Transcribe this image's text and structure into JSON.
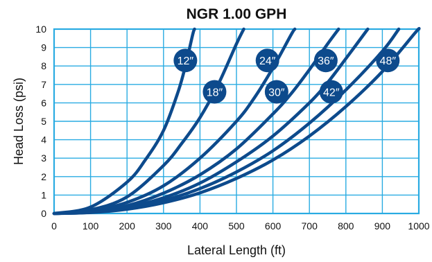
{
  "chart_data": {
    "type": "line",
    "title": "NGR 1.00 GPH",
    "xlabel": "Lateral Length (ft)",
    "ylabel": "Head Loss (psi)",
    "xlim": [
      0,
      1000
    ],
    "ylim": [
      0,
      10
    ],
    "xticks": [
      "0",
      "100",
      "200",
      "300",
      "400",
      "500",
      "600",
      "700",
      "800",
      "900",
      "1000"
    ],
    "yticks": [
      "0",
      "1",
      "2",
      "3",
      "4",
      "5",
      "6",
      "7",
      "8",
      "9",
      "10"
    ],
    "grid": true,
    "colors": {
      "grid": "#29abe2",
      "series": "#0d4a8c",
      "text": "#111111",
      "badge_text": "#ffffff"
    },
    "series": [
      {
        "name": "12″",
        "label_at": [
          360,
          8.3
        ],
        "points": [
          [
            0,
            0
          ],
          [
            100,
            0.35
          ],
          [
            200,
            1.7
          ],
          [
            250,
            2.9
          ],
          [
            300,
            4.5
          ],
          [
            340,
            6.6
          ],
          [
            360,
            8.0
          ],
          [
            380,
            9.7
          ],
          [
            385,
            10
          ]
        ]
      },
      {
        "name": "18″",
        "label_at": [
          440,
          6.6
        ],
        "points": [
          [
            0,
            0
          ],
          [
            100,
            0.2
          ],
          [
            200,
            0.9
          ],
          [
            300,
            2.6
          ],
          [
            350,
            3.8
          ],
          [
            400,
            5.2
          ],
          [
            450,
            7.0
          ],
          [
            500,
            9.2
          ],
          [
            520,
            10
          ]
        ]
      },
      {
        "name": "24″",
        "label_at": [
          585,
          8.3
        ],
        "points": [
          [
            0,
            0
          ],
          [
            100,
            0.13
          ],
          [
            200,
            0.6
          ],
          [
            300,
            1.5
          ],
          [
            400,
            3.0
          ],
          [
            500,
            5.0
          ],
          [
            550,
            6.3
          ],
          [
            600,
            7.9
          ],
          [
            650,
            9.7
          ],
          [
            660,
            10
          ]
        ]
      },
      {
        "name": "30″",
        "label_at": [
          610,
          6.6
        ],
        "points": [
          [
            0,
            0
          ],
          [
            100,
            0.09
          ],
          [
            200,
            0.42
          ],
          [
            300,
            1.1
          ],
          [
            400,
            2.1
          ],
          [
            500,
            3.5
          ],
          [
            600,
            5.4
          ],
          [
            650,
            6.5
          ],
          [
            700,
            7.8
          ],
          [
            750,
            9.2
          ],
          [
            780,
            10
          ]
        ]
      },
      {
        "name": "36″",
        "label_at": [
          745,
          8.3
        ],
        "points": [
          [
            0,
            0
          ],
          [
            100,
            0.07
          ],
          [
            200,
            0.33
          ],
          [
            300,
            0.85
          ],
          [
            400,
            1.65
          ],
          [
            500,
            2.8
          ],
          [
            600,
            4.2
          ],
          [
            700,
            6.0
          ],
          [
            750,
            7.1
          ],
          [
            800,
            8.4
          ],
          [
            860,
            10
          ]
        ]
      },
      {
        "name": "42″",
        "label_at": [
          760,
          6.6
        ],
        "points": [
          [
            0,
            0
          ],
          [
            100,
            0.06
          ],
          [
            200,
            0.27
          ],
          [
            300,
            0.7
          ],
          [
            400,
            1.35
          ],
          [
            500,
            2.25
          ],
          [
            600,
            3.4
          ],
          [
            700,
            4.9
          ],
          [
            800,
            6.7
          ],
          [
            900,
            8.8
          ],
          [
            945,
            10
          ]
        ]
      },
      {
        "name": "48″",
        "label_at": [
          915,
          8.3
        ],
        "points": [
          [
            0,
            0
          ],
          [
            100,
            0.05
          ],
          [
            200,
            0.23
          ],
          [
            300,
            0.58
          ],
          [
            400,
            1.12
          ],
          [
            500,
            1.9
          ],
          [
            600,
            2.9
          ],
          [
            700,
            4.2
          ],
          [
            800,
            5.8
          ],
          [
            900,
            7.7
          ],
          [
            990,
            9.8
          ],
          [
            1000,
            10
          ]
        ]
      }
    ]
  }
}
